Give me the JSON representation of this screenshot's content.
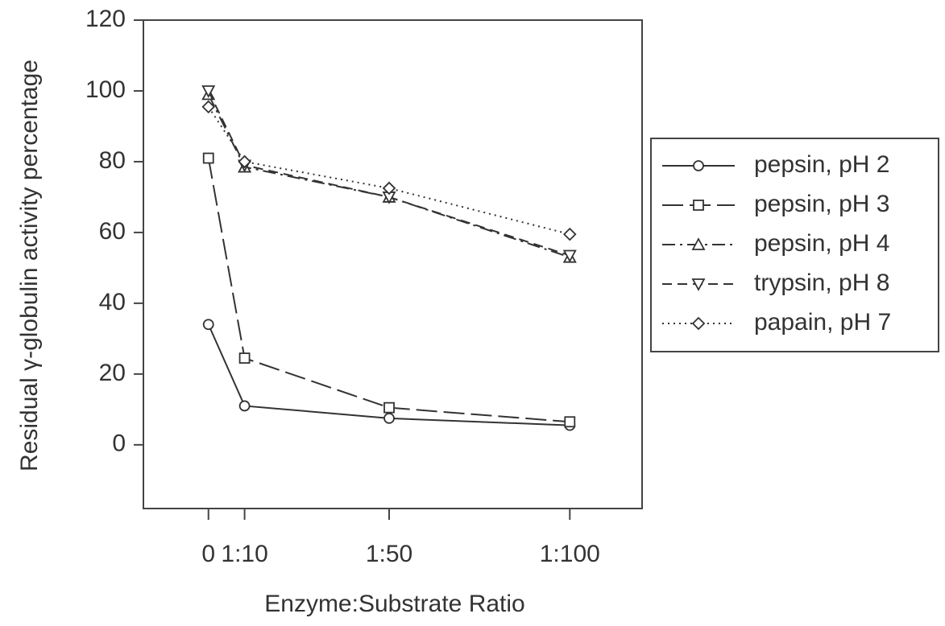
{
  "chart_data": {
    "type": "line",
    "x_label": "Enzyme:Substrate Ratio",
    "y_label": "Residual γ-globulin activity percentage",
    "x": [
      0,
      10,
      50,
      100
    ],
    "xlim": [
      -18,
      120
    ],
    "xticks": [
      0,
      {
        "value": 10,
        "label": "1:10"
      },
      {
        "value": 50,
        "label": "1:50"
      },
      {
        "value": 100,
        "label": "1:100"
      }
    ],
    "ylim": [
      -18,
      120
    ],
    "yticks": [
      0,
      20,
      40,
      60,
      80,
      100,
      120
    ],
    "legend": "right",
    "series": [
      {
        "name": "pepsin, pH 2",
        "color": "#333333",
        "marker": "circle",
        "line_style": "solid",
        "values": [
          34,
          11,
          7.5,
          5.5
        ]
      },
      {
        "name": "pepsin, pH 3",
        "color": "#333333",
        "marker": "square",
        "line_style": "longdash",
        "values": [
          81,
          24.5,
          10.5,
          6.5
        ]
      },
      {
        "name": "pepsin, pH 4",
        "color": "#333333",
        "marker": "triangle-up",
        "line_style": "dashdot",
        "values": [
          99,
          78.5,
          70,
          53
        ]
      },
      {
        "name": "trypsin, pH 8",
        "color": "#333333",
        "marker": "triangle-down",
        "line_style": "dashed",
        "values": [
          100,
          79,
          70,
          53.5
        ]
      },
      {
        "name": "papain, pH 7",
        "color": "#333333",
        "marker": "diamond",
        "line_style": "dotted",
        "values": [
          95.5,
          80,
          72.5,
          59.5
        ]
      }
    ]
  }
}
